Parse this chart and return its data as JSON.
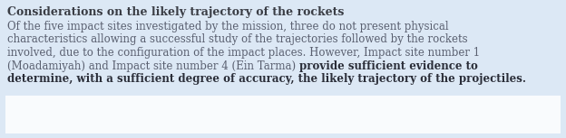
{
  "background_color": "#dce8f5",
  "highlight_bg_color": "#ccdcee",
  "text_color": "#5a6070",
  "title_color": "#3a3d45",
  "title": "Considerations on the likely trajectory of the rockets",
  "line1": "Of the five impact sites investigated by the mission, three do not present physical",
  "line2": "characteristics allowing a successful study of the trajectories followed by the rockets",
  "line3": "involved, due to the configuration of the impact places. However, Impact site number 1",
  "line4_normal": "(Moadamiyah) and Impact site number 4 (Ein Tarma) ",
  "line4_bold": "provide sufficient evidence to",
  "line5_bold": "determine, with a sufficient degree of accuracy, the likely trajectory of the projectiles.",
  "bold_color": "#2a2d38",
  "figsize": [
    6.24,
    1.53
  ],
  "dpi": 100,
  "font_size": 8.5,
  "title_font_size": 9.0
}
